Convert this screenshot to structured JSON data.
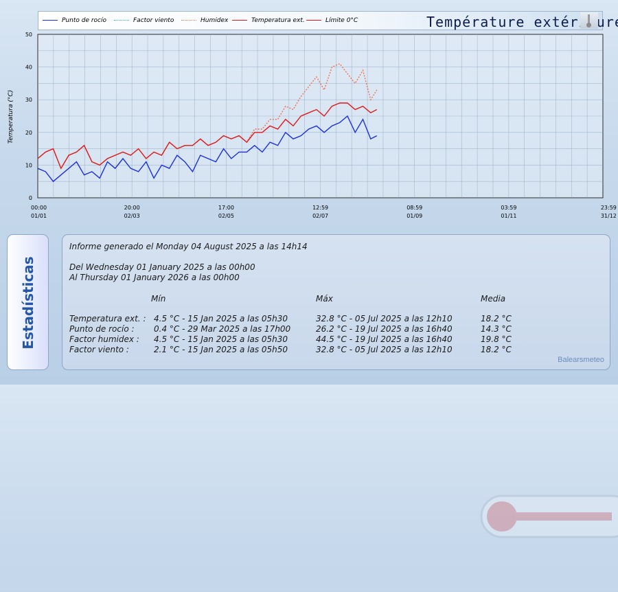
{
  "title": "Température extérieure",
  "legend": [
    {
      "label": "Punto de rocío",
      "color": "#1a2ee0",
      "style": "solid"
    },
    {
      "label": "Factor viento",
      "color": "#19b8d6",
      "style": "dotted"
    },
    {
      "label": "Humidex",
      "color": "#f07050",
      "style": "dotted"
    },
    {
      "label": "Temperatura ext.",
      "color": "#e01818",
      "style": "solid"
    },
    {
      "label": "Límite 0°C",
      "color": "#e01818",
      "style": "solid"
    }
  ],
  "chart_data": {
    "type": "line",
    "ylabel": "Temperatura (°C)",
    "ylim": [
      0,
      50
    ],
    "yticks": [
      0,
      10,
      20,
      30,
      40,
      50
    ],
    "xlim": [
      0,
      8760
    ],
    "xticks": [
      {
        "hour": 0,
        "time": "00:00",
        "date": "01/01"
      },
      {
        "hour": 1460,
        "time": "20:00",
        "date": "02/03"
      },
      {
        "hour": 2921,
        "time": "17:00",
        "date": "02/05"
      },
      {
        "hour": 4381,
        "time": "12:59",
        "date": "02/07"
      },
      {
        "hour": 5841,
        "time": "08:59",
        "date": "01/09"
      },
      {
        "hour": 7301,
        "time": "03:59",
        "date": "01/11"
      },
      {
        "hour": 8759,
        "time": "23:59",
        "date": "31/12"
      }
    ],
    "x_hours": [
      0,
      120,
      240,
      360,
      480,
      600,
      720,
      840,
      960,
      1080,
      1200,
      1320,
      1440,
      1560,
      1680,
      1800,
      1920,
      2040,
      2160,
      2280,
      2400,
      2520,
      2640,
      2760,
      2880,
      3000,
      3120,
      3240,
      3360,
      3480,
      3600,
      3720,
      3840,
      3960,
      4080,
      4200,
      4320,
      4440,
      4560,
      4680,
      4800,
      4920,
      5040,
      5160,
      5256
    ],
    "series": [
      {
        "name": "Temperatura ext.",
        "color": "#e01818",
        "dash": "",
        "values": [
          12,
          14,
          15,
          9,
          13,
          14,
          16,
          11,
          10,
          12,
          13,
          14,
          13,
          15,
          12,
          14,
          13,
          17,
          15,
          16,
          16,
          18,
          16,
          17,
          19,
          18,
          19,
          17,
          20,
          20,
          22,
          21,
          24,
          22,
          25,
          26,
          27,
          25,
          28,
          29,
          29,
          27,
          28,
          26,
          27
        ]
      },
      {
        "name": "Punto de rocío",
        "color": "#1a2ee0",
        "dash": "",
        "values": [
          9,
          8,
          5,
          7,
          9,
          11,
          7,
          8,
          6,
          11,
          9,
          12,
          9,
          8,
          11,
          6,
          10,
          9,
          13,
          11,
          8,
          13,
          12,
          11,
          15,
          12,
          14,
          14,
          16,
          14,
          17,
          16,
          20,
          18,
          19,
          21,
          22,
          20,
          22,
          23,
          25,
          20,
          24,
          18,
          19
        ]
      },
      {
        "name": "Humidex",
        "color": "#f07050",
        "dash": "2,2",
        "values": [
          12,
          14,
          15,
          9,
          13,
          14,
          16,
          11,
          10,
          12,
          13,
          14,
          13,
          15,
          12,
          14,
          13,
          17,
          15,
          16,
          16,
          18,
          16,
          17,
          19,
          18,
          19,
          17,
          21,
          21,
          24,
          24,
          28,
          27,
          31,
          34,
          37,
          33,
          40,
          41,
          38,
          35,
          39,
          30,
          33
        ]
      }
    ]
  },
  "stats": {
    "generated": "Informe generado el Monday 04 August 2025 a las 14h14",
    "from": "Del Wednesday 01 January 2025 a las 00h00",
    "to": "Al Thursday 01 January 2026 a las 00h00",
    "header_min": "Mín",
    "header_max": "Máx",
    "header_avg": "Media",
    "rows": [
      {
        "label": "Temperatura ext. :",
        "min": "4.5 °C - 15 Jan 2025 a las 05h30",
        "max": "32.8 °C - 05 Jul 2025 a las 12h10",
        "avg": "18.2 °C"
      },
      {
        "label": "Punto de rocío :",
        "min": "0.4 °C - 29 Mar 2025 a las 17h00",
        "max": "26.2 °C - 19 Jul 2025 a las 16h40",
        "avg": "14.3 °C"
      },
      {
        "label": "Factor humidex :",
        "min": "4.5 °C - 15 Jan 2025 a las 05h30",
        "max": "44.5 °C - 19 Jul 2025 a las 16h40",
        "avg": "19.8 °C"
      },
      {
        "label": "Factor viento :",
        "min": "2.1 °C - 15 Jan 2025 a las 05h50",
        "max": "32.8 °C - 05 Jul 2025 a las 12h10",
        "avg": "18.2 °C"
      }
    ],
    "side_label": "Estadísticas",
    "credit": "Balearsmeteo"
  }
}
